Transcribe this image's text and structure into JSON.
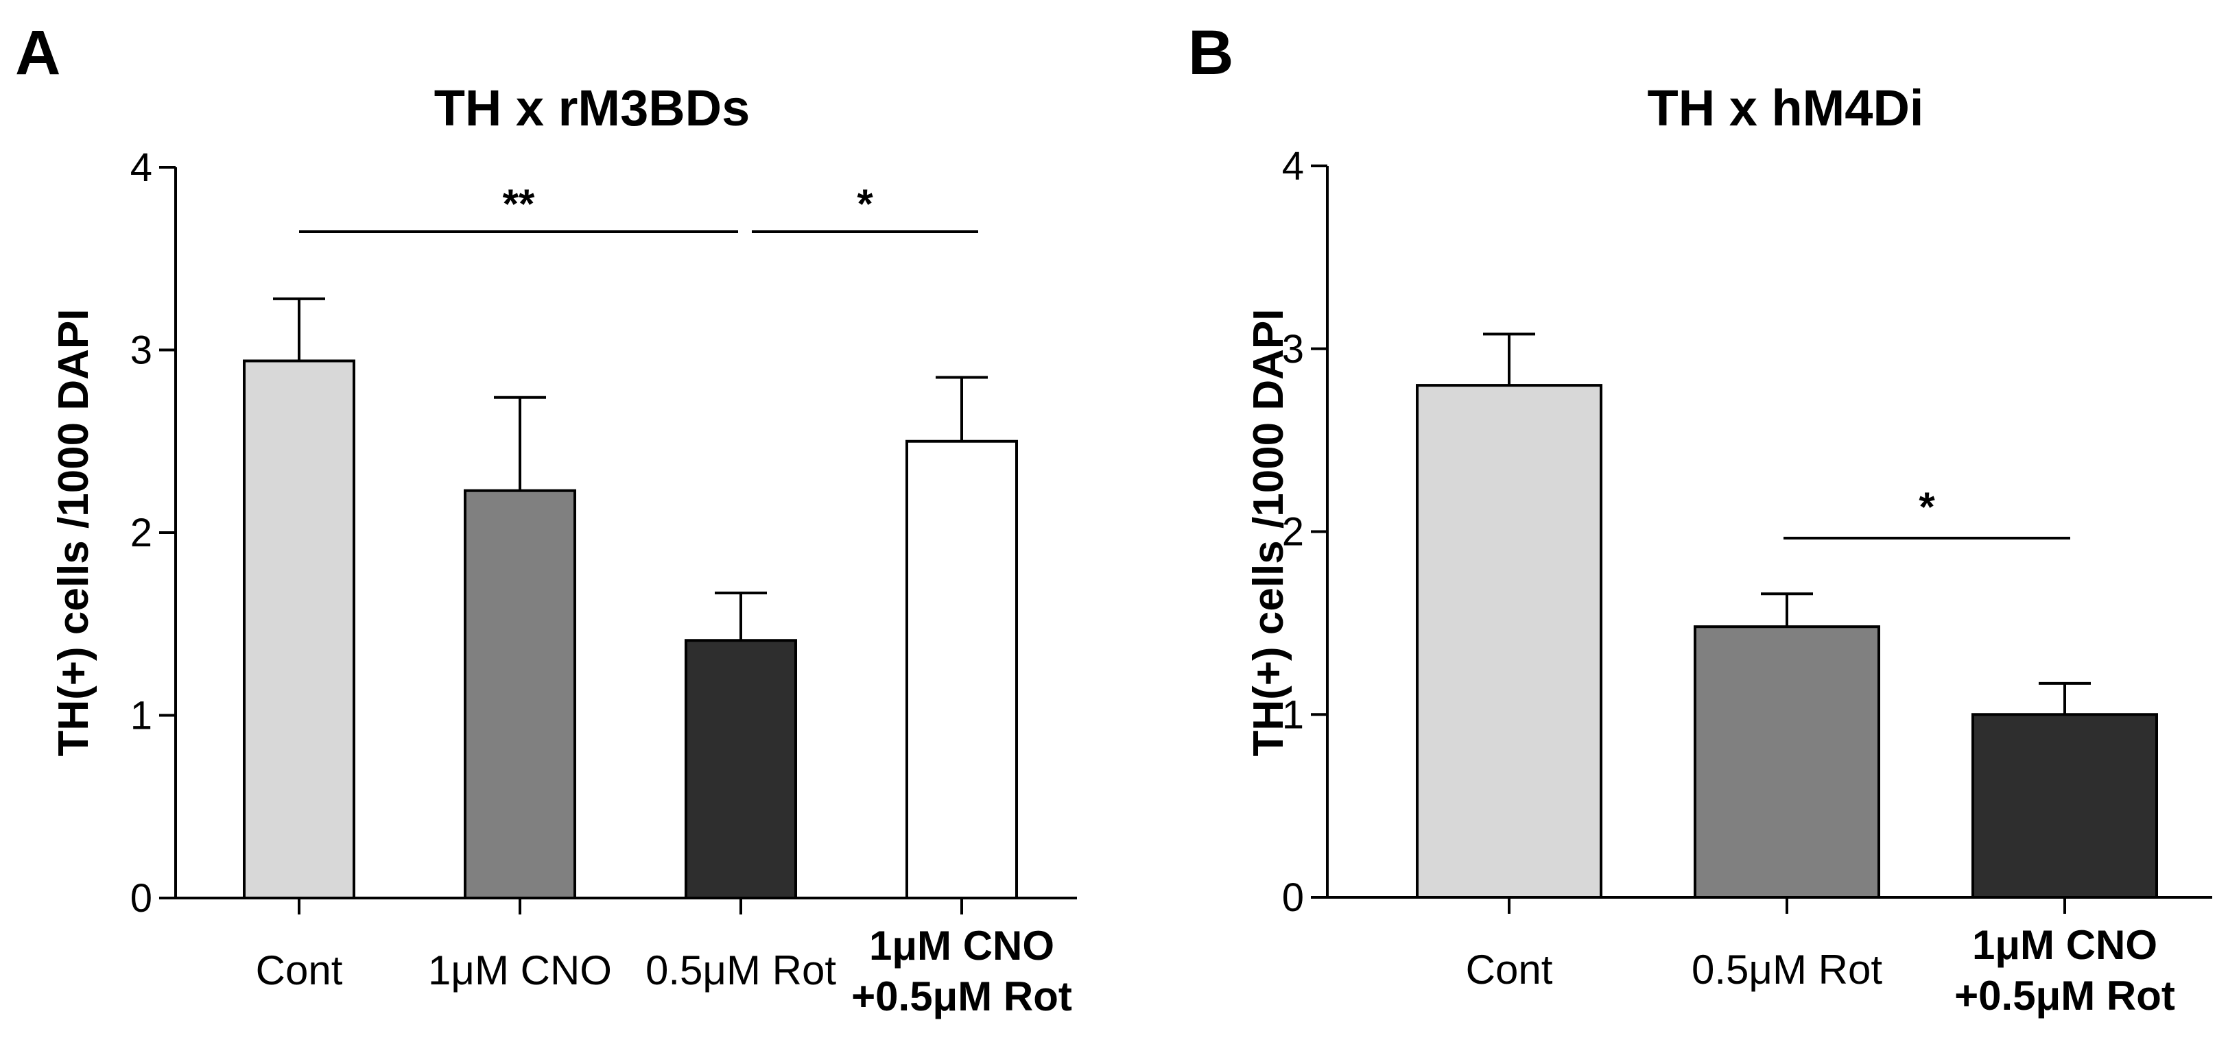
{
  "chart_data": [
    {
      "type": "bar",
      "panel_label": "A",
      "title": "TH x rM3BDs",
      "xlabel": "",
      "ylabel": "TH(+) cells /1000 DAPI",
      "ylim": [
        0,
        4
      ],
      "yticks": [
        "0",
        "1",
        "2",
        "3",
        "4"
      ],
      "categories": [
        "Cont",
        "1μM CNO",
        "0.5μM Rot",
        "1μM CNO\n+0.5μM Rot"
      ],
      "values": [
        2.94,
        2.23,
        1.41,
        2.5
      ],
      "errors": [
        0.34,
        0.51,
        0.26,
        0.35
      ],
      "bar_colors": [
        "#d8d8d8",
        "#808080",
        "#2e2e2e",
        "#ffffff"
      ],
      "significance": [
        {
          "from": 0,
          "to": 2,
          "label": "**"
        },
        {
          "from": 2,
          "to": 3,
          "label": "*"
        }
      ]
    },
    {
      "type": "bar",
      "panel_label": "B",
      "title": "TH x hM4Di",
      "xlabel": "",
      "ylabel": "TH(+) cells /1000 DAPI",
      "ylim": [
        0,
        4
      ],
      "yticks": [
        "0",
        "1",
        "2",
        "3",
        "4"
      ],
      "categories": [
        "Cont",
        "0.5μM Rot",
        "1μM CNO\n+0.5μM Rot"
      ],
      "values": [
        2.8,
        1.48,
        1.0
      ],
      "errors": [
        0.28,
        0.18,
        0.17
      ],
      "bar_colors": [
        "#d8d8d8",
        "#808080",
        "#2e2e2e"
      ],
      "significance": [
        {
          "from": 1,
          "to": 2,
          "label": "*"
        }
      ]
    }
  ]
}
